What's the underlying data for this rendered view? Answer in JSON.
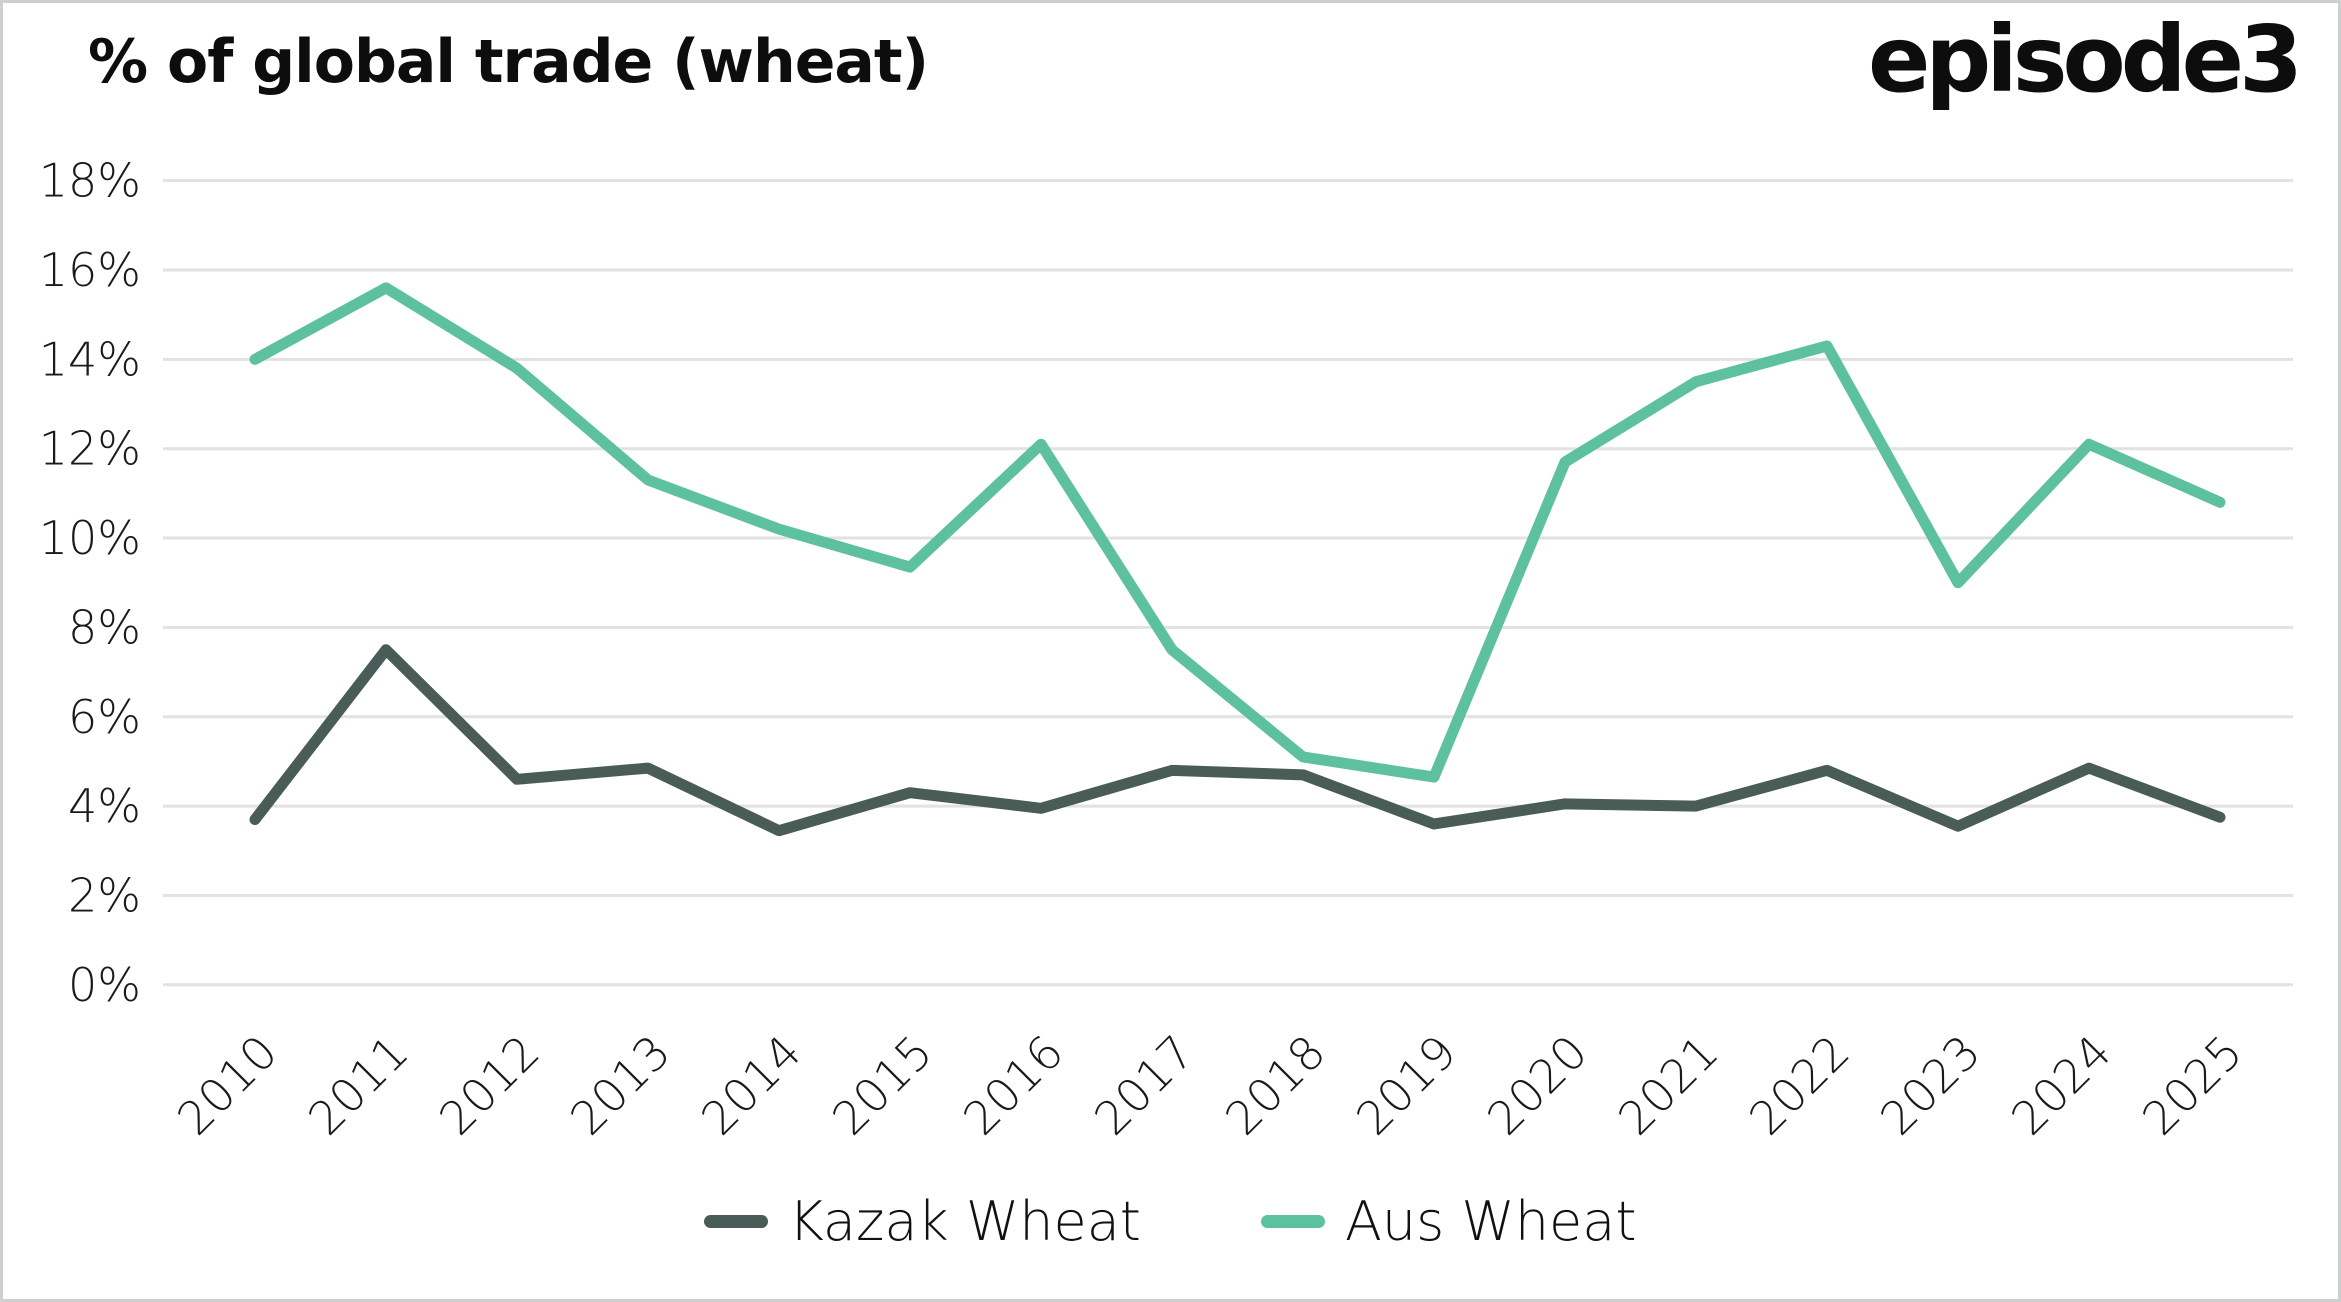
{
  "header": {
    "title": "% of global trade (wheat)",
    "logo": "episode3"
  },
  "chart_data": {
    "type": "line",
    "title": "% of global trade (wheat)",
    "x": [
      2010,
      2011,
      2012,
      2013,
      2014,
      2015,
      2016,
      2017,
      2018,
      2019,
      2020,
      2021,
      2022,
      2023,
      2024,
      2025
    ],
    "x_labels": [
      "2010",
      "2011",
      "2012",
      "2013",
      "2014",
      "2015",
      "2016",
      "2017",
      "2018",
      "2019",
      "2020",
      "2021",
      "2022",
      "2023",
      "2024",
      "2025"
    ],
    "series": [
      {
        "name": "Kazak Wheat",
        "color": "#4A5C58",
        "values": [
          3.7,
          7.5,
          4.6,
          4.85,
          3.45,
          4.3,
          3.95,
          4.8,
          4.7,
          3.6,
          4.05,
          4.0,
          4.8,
          3.55,
          4.85,
          3.75
        ]
      },
      {
        "name": "Aus Wheat",
        "color": "#5EC19D",
        "values": [
          14.0,
          15.6,
          13.8,
          11.3,
          10.2,
          9.35,
          12.1,
          7.5,
          5.1,
          4.65,
          11.7,
          13.5,
          14.3,
          9.0,
          12.1,
          10.8
        ]
      }
    ],
    "ylim": [
      0,
      18
    ],
    "yticks": [
      {
        "value": 0,
        "label": "0%"
      },
      {
        "value": 2,
        "label": "2%"
      },
      {
        "value": 4,
        "label": "4%"
      },
      {
        "value": 6,
        "label": "6%"
      },
      {
        "value": 8,
        "label": "8%"
      },
      {
        "value": 10,
        "label": "10%"
      },
      {
        "value": 12,
        "label": "12%"
      },
      {
        "value": 14,
        "label": "14%"
      },
      {
        "value": 16,
        "label": "16%"
      },
      {
        "value": 18,
        "label": "18%"
      }
    ],
    "grid": "horizontal",
    "legend_position": "bottom-center",
    "xlabel": "",
    "ylabel": "% of global trade (wheat)"
  },
  "colors": {
    "gridline": "#E2E2E2",
    "text": "#1A1A1A",
    "background": "#FFFFFF",
    "frame_border": "#CDD0CF"
  }
}
